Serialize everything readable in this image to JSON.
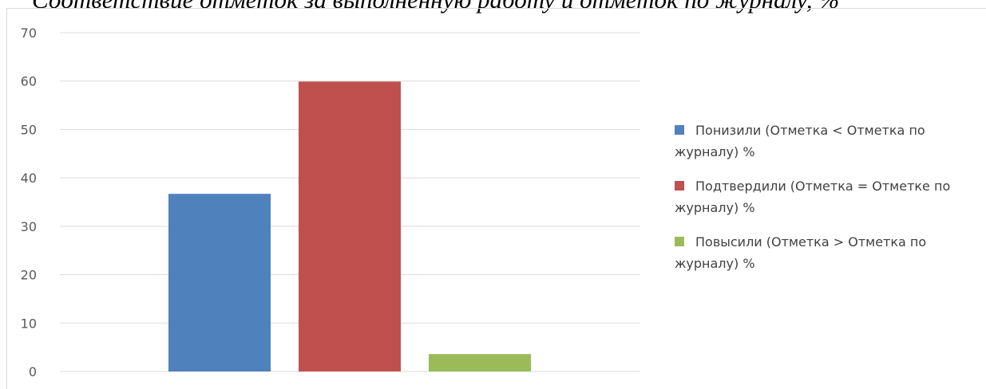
{
  "title": "Соответствие отметок за выполненную работу и отметок по журналу, %",
  "chart_data": {
    "type": "bar",
    "categories": [
      ""
    ],
    "series": [
      {
        "name": "Понизили (Отметка < Отметка по журналу) %",
        "values": [
          36.7
        ],
        "color": "#4f81bd"
      },
      {
        "name": "Подтвердили (Отметка = Отметке по журналу) %",
        "values": [
          59.9
        ],
        "color": "#c0504d"
      },
      {
        "name": "Повысили (Отметка > Отметка по журналу) %",
        "values": [
          3.6
        ],
        "color": "#9bbb59"
      }
    ],
    "y_ticks": [
      "0",
      "10",
      "20",
      "30",
      "40",
      "50",
      "60",
      "70"
    ],
    "ylim": [
      0,
      70
    ],
    "grid": true,
    "legend_position": "right",
    "xlabel": "",
    "ylabel": ""
  }
}
